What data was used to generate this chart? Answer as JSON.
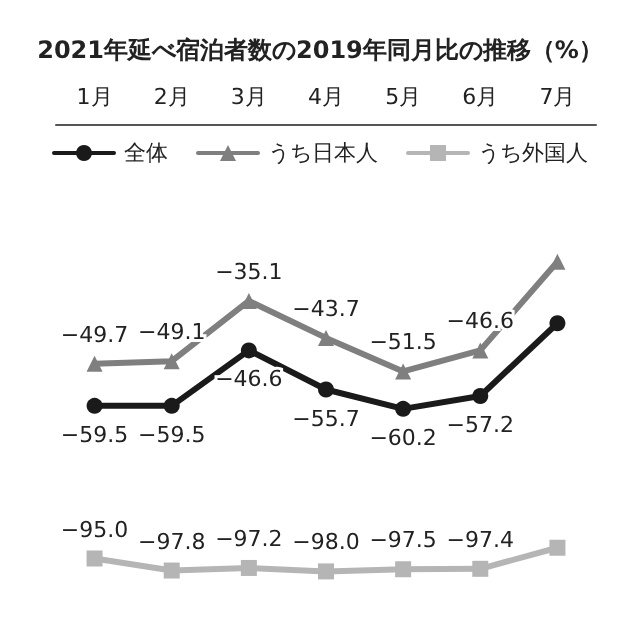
{
  "chart_data": {
    "type": "line",
    "title": "2021年延べ宿泊者数の2019年同月比の推移（%）",
    "categories": [
      "1月",
      "2月",
      "3月",
      "4月",
      "5月",
      "6月",
      "7月"
    ],
    "series": [
      {
        "name": "全体",
        "color": "#1a1a1a",
        "marker": "circle",
        "values": [
          -59.5,
          -59.5,
          -46.6,
          -55.7,
          -60.2,
          -57.2,
          -40.3
        ],
        "value_labels": [
          "−59.5",
          "−59.5",
          "−46.6",
          "−55.7",
          "−60.2",
          "−57.2",
          null
        ]
      },
      {
        "name": "うち日本人",
        "color": "#7f7f7f",
        "marker": "triangle",
        "values": [
          -49.7,
          -49.1,
          -35.1,
          -43.7,
          -51.5,
          -46.6,
          -26.0
        ],
        "value_labels": [
          "−49.7",
          "−49.1",
          "−35.1",
          "−43.7",
          "−51.5",
          "−46.6",
          null
        ]
      },
      {
        "name": "うち外国人",
        "color": "#b5b5b5",
        "marker": "square",
        "values": [
          -95.0,
          -97.8,
          -97.2,
          -98.0,
          -97.5,
          -97.4,
          -92.5
        ],
        "value_labels": [
          "−95.0",
          "−97.8",
          "−97.2",
          "−98.0",
          "−97.5",
          "−97.4",
          null
        ]
      }
    ],
    "legend": "top",
    "grid": false,
    "line_style": "solid"
  }
}
